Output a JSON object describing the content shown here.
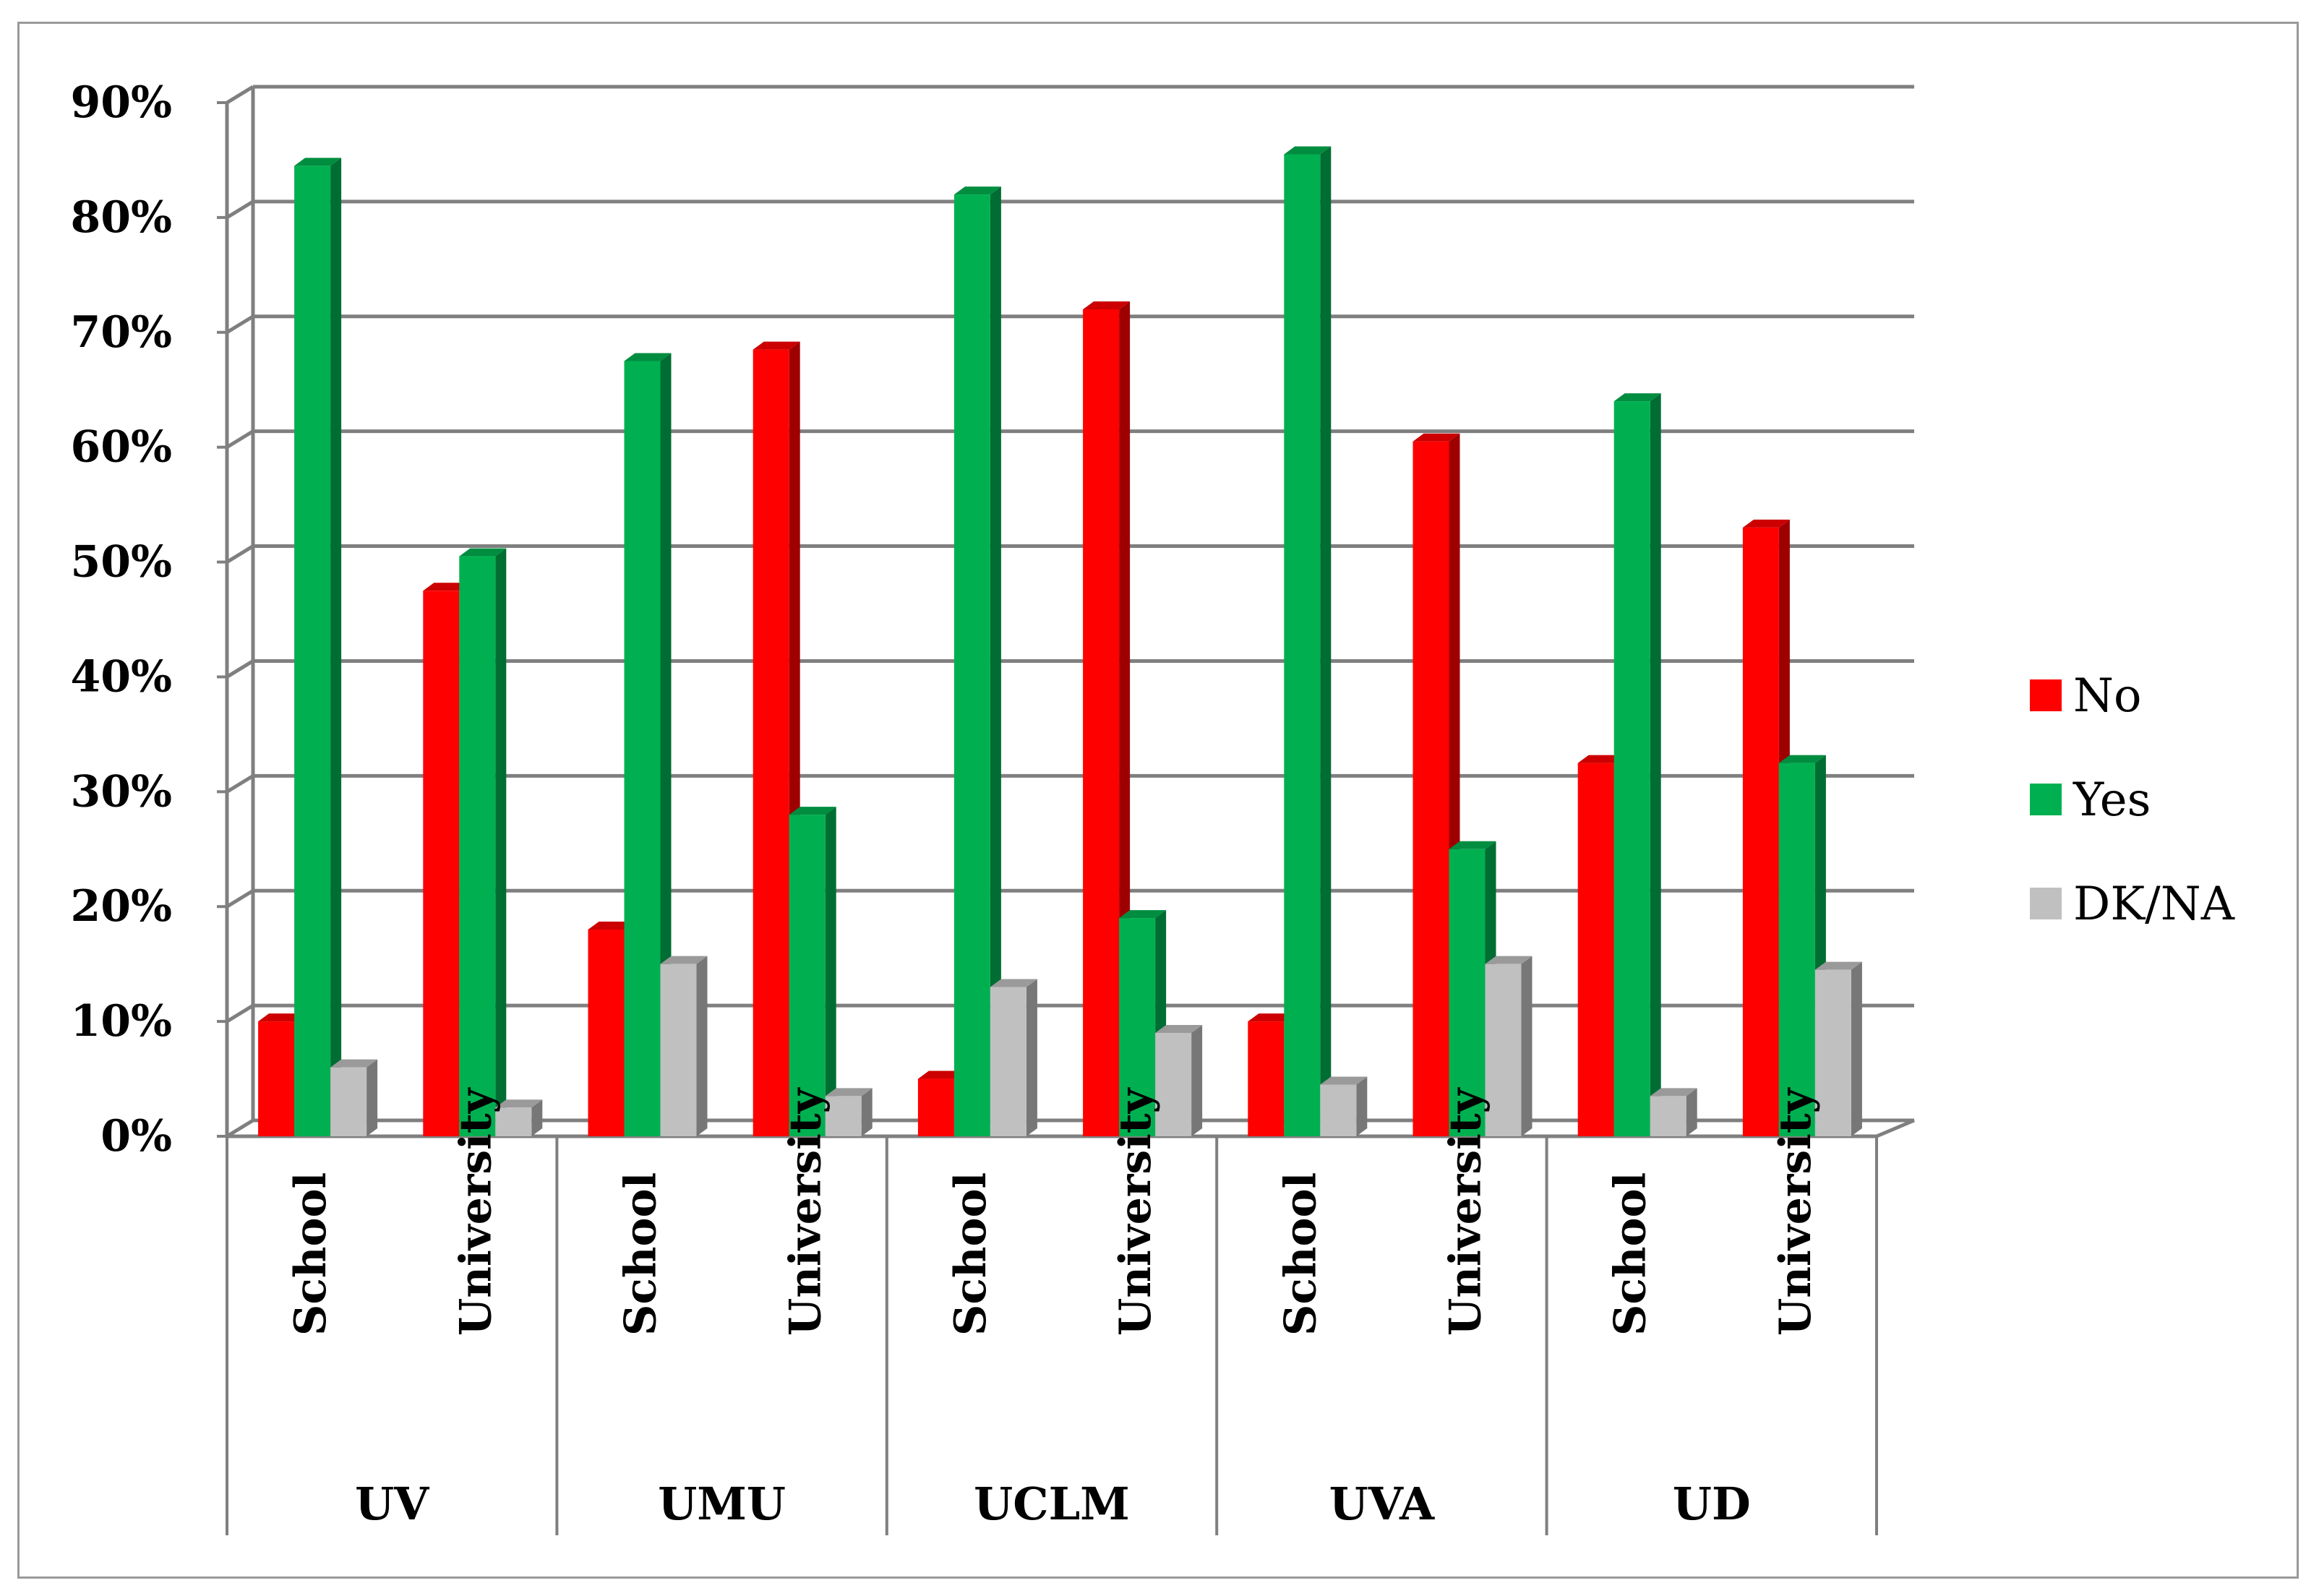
{
  "chart_data": {
    "type": "bar",
    "groups": [
      "UV",
      "UMU",
      "UCLM",
      "UVA",
      "UD"
    ],
    "subcategories": [
      "School",
      "University"
    ],
    "series": [
      {
        "name": "No",
        "color": "#ff0000",
        "values": [
          10,
          47.5,
          18,
          68.5,
          5,
          72,
          10,
          60.5,
          32.5,
          53
        ]
      },
      {
        "name": "Yes",
        "color": "#00b050",
        "values": [
          84.5,
          50.5,
          67.5,
          28,
          82,
          19,
          85.5,
          25,
          64,
          32.5
        ]
      },
      {
        "name": "DK/NA",
        "color": "#c0c0c0",
        "values": [
          6,
          2.5,
          15,
          3.5,
          13,
          9,
          4.5,
          15,
          3.5,
          14.5
        ]
      }
    ],
    "y_ticks": [
      "0%",
      "10%",
      "20%",
      "30%",
      "40%",
      "50%",
      "60%",
      "70%",
      "80%",
      "90%"
    ],
    "ylim": [
      0,
      90
    ],
    "grid": true,
    "legend_position": "right",
    "style": "3d-clustered-column"
  }
}
